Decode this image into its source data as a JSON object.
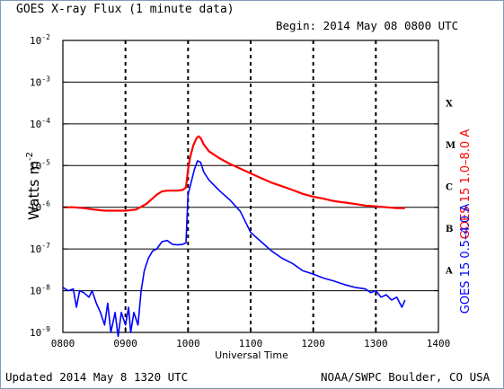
{
  "header": {
    "title": "GOES X-ray Flux (1 minute data)",
    "begin": "Begin: 2014 May 08 0800 UTC"
  },
  "footer": {
    "updated": "Updated 2014 May  8 1320 UTC",
    "credit": "NOAA/SWPC Boulder, CO USA"
  },
  "chart_data": {
    "type": "line",
    "xlabel": "Universal Time",
    "ylabel_main": "Watts m",
    "ylabel_exp": "-2",
    "y_scale": "log",
    "xlim": [
      "0800",
      "1400"
    ],
    "ylim": [
      1e-09,
      0.01
    ],
    "x_ticks": [
      "0800",
      "0900",
      "1000",
      "1100",
      "1200",
      "1300",
      "1400"
    ],
    "y_ticks": [
      {
        "base": "10",
        "exp": "-9"
      },
      {
        "base": "10",
        "exp": "-8"
      },
      {
        "base": "10",
        "exp": "-7"
      },
      {
        "base": "10",
        "exp": "-6"
      },
      {
        "base": "10",
        "exp": "-5"
      },
      {
        "base": "10",
        "exp": "-4"
      },
      {
        "base": "10",
        "exp": "-3"
      },
      {
        "base": "10",
        "exp": "-2"
      }
    ],
    "flare_classes": [
      "A",
      "B",
      "C",
      "M",
      "X"
    ],
    "grid": "dashed vertical at each hour, solid horizontal at flare class levels",
    "series": [
      {
        "name": "GOES 15 1.0–8.0 A",
        "color": "#ff0000",
        "points": [
          [
            "0800",
            1e-06
          ],
          [
            "0810",
            1e-06
          ],
          [
            "0820",
            9.5e-07
          ],
          [
            "0830",
            8.8e-07
          ],
          [
            "0840",
            8.3e-07
          ],
          [
            "0850",
            8.3e-07
          ],
          [
            "0900",
            8.3e-07
          ],
          [
            "0910",
            8.8e-07
          ],
          [
            "0920",
            1.2e-06
          ],
          [
            "0930",
            2e-06
          ],
          [
            "0935",
            2.4e-06
          ],
          [
            "0940",
            2.5e-06
          ],
          [
            "0950",
            2.5e-06
          ],
          [
            "0955",
            2.6e-06
          ],
          [
            "0958",
            3e-06
          ],
          [
            "1000",
            8e-06
          ],
          [
            "1002",
            1.6e-05
          ],
          [
            "1005",
            3e-05
          ],
          [
            "1008",
            4.5e-05
          ],
          [
            "1010",
            5e-05
          ],
          [
            "1012",
            4.6e-05
          ],
          [
            "1015",
            3.2e-05
          ],
          [
            "1020",
            2.2e-05
          ],
          [
            "1030",
            1.5e-05
          ],
          [
            "1040",
            1.1e-05
          ],
          [
            "1050",
            8.5e-06
          ],
          [
            "1100",
            6.5e-06
          ],
          [
            "1110",
            5e-06
          ],
          [
            "1120",
            3.9e-06
          ],
          [
            "1130",
            3.2e-06
          ],
          [
            "1140",
            2.6e-06
          ],
          [
            "1150",
            2.1e-06
          ],
          [
            "1200",
            1.8e-06
          ],
          [
            "1210",
            1.6e-06
          ],
          [
            "1220",
            1.4e-06
          ],
          [
            "1230",
            1.3e-06
          ],
          [
            "1240",
            1.2e-06
          ],
          [
            "1250",
            1.1e-06
          ],
          [
            "1300",
            1.05e-06
          ],
          [
            "1310",
            1e-06
          ],
          [
            "1320",
            9.5e-07
          ],
          [
            "1328",
            9.5e-07
          ]
        ]
      },
      {
        "name": "GOES 15 0.5–4.0 A",
        "color": "#0000ff",
        "points": [
          [
            "0800",
            1.2e-08
          ],
          [
            "0805",
            1e-08
          ],
          [
            "0810",
            1.1e-08
          ],
          [
            "0813",
            4e-09
          ],
          [
            "0816",
            1e-08
          ],
          [
            "0820",
            9e-09
          ],
          [
            "0825",
            7e-09
          ],
          [
            "0828",
            1e-08
          ],
          [
            "0832",
            5e-09
          ],
          [
            "0836",
            3e-09
          ],
          [
            "0840",
            1.5e-09
          ],
          [
            "0843",
            5e-09
          ],
          [
            "0846",
            1e-09
          ],
          [
            "0850",
            3e-09
          ],
          [
            "0853",
            8e-10
          ],
          [
            "0856",
            3e-09
          ],
          [
            "0900",
            1.5e-09
          ],
          [
            "0903",
            4e-09
          ],
          [
            "0905",
            1e-09
          ],
          [
            "0908",
            3e-09
          ],
          [
            "0912",
            1.5e-09
          ],
          [
            "0915",
            1e-08
          ],
          [
            "0918",
            3e-08
          ],
          [
            "0922",
            6e-08
          ],
          [
            "0926",
            9e-08
          ],
          [
            "0930",
            1e-07
          ],
          [
            "0935",
            1.5e-07
          ],
          [
            "0940",
            1.6e-07
          ],
          [
            "0945",
            1.3e-07
          ],
          [
            "0950",
            1.25e-07
          ],
          [
            "0955",
            1.3e-07
          ],
          [
            "0958",
            1.4e-07
          ],
          [
            "1000",
            2e-06
          ],
          [
            "1003",
            4e-06
          ],
          [
            "1006",
            8e-06
          ],
          [
            "1009",
            1.3e-05
          ],
          [
            "1012",
            1.2e-05
          ],
          [
            "1015",
            7e-06
          ],
          [
            "1020",
            4.5e-06
          ],
          [
            "1030",
            2.5e-06
          ],
          [
            "1040",
            1.5e-06
          ],
          [
            "1050",
            8e-07
          ],
          [
            "1100",
            2.5e-07
          ],
          [
            "1110",
            1.5e-07
          ],
          [
            "1120",
            9e-08
          ],
          [
            "1130",
            6e-08
          ],
          [
            "1140",
            4.5e-08
          ],
          [
            "1150",
            3e-08
          ],
          [
            "1200",
            2.5e-08
          ],
          [
            "1210",
            2e-08
          ],
          [
            "1220",
            1.7e-08
          ],
          [
            "1230",
            1.4e-08
          ],
          [
            "1240",
            1.2e-08
          ],
          [
            "1250",
            1.1e-08
          ],
          [
            "1255",
            9e-09
          ],
          [
            "1300",
            1e-08
          ],
          [
            "1305",
            7e-09
          ],
          [
            "1310",
            8e-09
          ],
          [
            "1315",
            6e-09
          ],
          [
            "1320",
            7e-09
          ],
          [
            "1325",
            4e-09
          ],
          [
            "1328",
            6e-09
          ]
        ]
      }
    ]
  }
}
